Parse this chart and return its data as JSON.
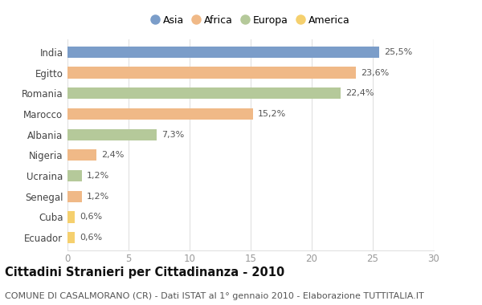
{
  "categories": [
    "India",
    "Egitto",
    "Romania",
    "Marocco",
    "Albania",
    "Nigeria",
    "Ucraina",
    "Senegal",
    "Cuba",
    "Ecuador"
  ],
  "values": [
    25.5,
    23.6,
    22.4,
    15.2,
    7.3,
    2.4,
    1.2,
    1.2,
    0.6,
    0.6
  ],
  "labels": [
    "25,5%",
    "23,6%",
    "22,4%",
    "15,2%",
    "7,3%",
    "2,4%",
    "1,2%",
    "1,2%",
    "0,6%",
    "0,6%"
  ],
  "colors": [
    "#7b9dc9",
    "#f0b987",
    "#b5c99a",
    "#f0b987",
    "#b5c99a",
    "#f0b987",
    "#b5c99a",
    "#f0b987",
    "#f5d06e",
    "#f5d06e"
  ],
  "legend_labels": [
    "Asia",
    "Africa",
    "Europa",
    "America"
  ],
  "legend_colors": [
    "#7b9dc9",
    "#f0b987",
    "#b5c99a",
    "#f5d06e"
  ],
  "xlim": [
    0,
    30
  ],
  "xticks": [
    0,
    5,
    10,
    15,
    20,
    25,
    30
  ],
  "title": "Cittadini Stranieri per Cittadinanza - 2010",
  "subtitle": "COMUNE DI CASALMORANO (CR) - Dati ISTAT al 1° gennaio 2010 - Elaborazione TUTTITALIA.IT",
  "background_color": "#ffffff",
  "bar_height": 0.55,
  "title_fontsize": 10.5,
  "subtitle_fontsize": 8,
  "label_fontsize": 8,
  "ytick_fontsize": 8.5,
  "xtick_fontsize": 8.5,
  "label_color": "#555555",
  "ytick_color": "#444444",
  "xtick_color": "#999999",
  "grid_color": "#e0e0e0",
  "title_color": "#111111",
  "subtitle_color": "#555555"
}
